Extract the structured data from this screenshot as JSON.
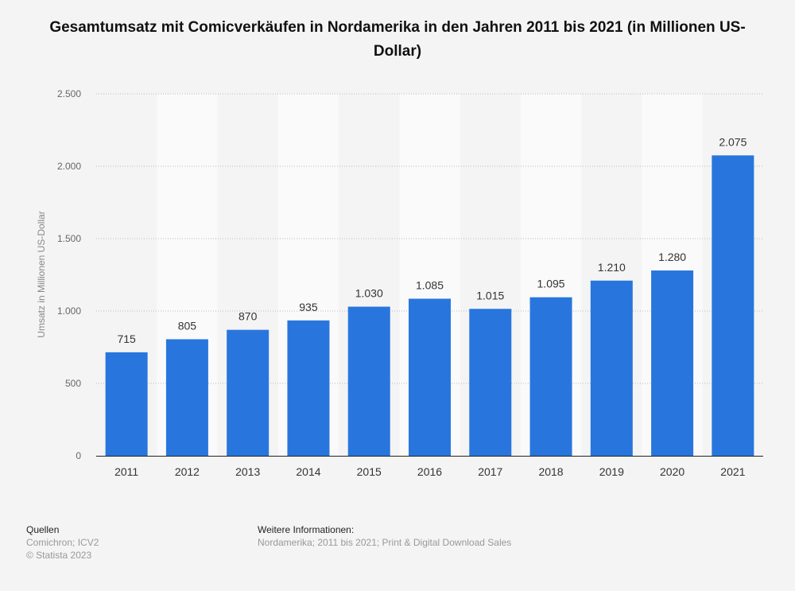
{
  "chart_data": {
    "type": "bar",
    "title": "Gesamtumsatz mit Comicverkäufen in Nordamerika in den Jahren 2011 bis 2021 (in Millionen US-Dollar)",
    "xlabel": "",
    "ylabel": "Umsatz in Millionen US-Dollar",
    "categories": [
      "2011",
      "2012",
      "2013",
      "2014",
      "2015",
      "2016",
      "2017",
      "2018",
      "2019",
      "2020",
      "2021"
    ],
    "values": [
      715,
      805,
      870,
      935,
      1030,
      1085,
      1015,
      1095,
      1210,
      1280,
      2075
    ],
    "value_labels": [
      "715",
      "805",
      "870",
      "935",
      "1.030",
      "1.085",
      "1.015",
      "1.095",
      "1.210",
      "1.280",
      "2.075"
    ],
    "ylim": [
      0,
      2500
    ],
    "yticks": [
      0,
      500,
      1000,
      1500,
      2000,
      2500
    ],
    "ytick_labels": [
      "0",
      "500",
      "1.000",
      "1.500",
      "2.000",
      "2.500"
    ],
    "grid": true,
    "bar_color": "#2876dd"
  },
  "footer": {
    "sources_heading": "Quellen",
    "sources": "Comichron; ICV2",
    "copyright": "© Statista 2023",
    "info_heading": "Weitere Informationen:",
    "info": "Nordamerika; 2011 bis 2021; Print & Digital Download Sales"
  }
}
